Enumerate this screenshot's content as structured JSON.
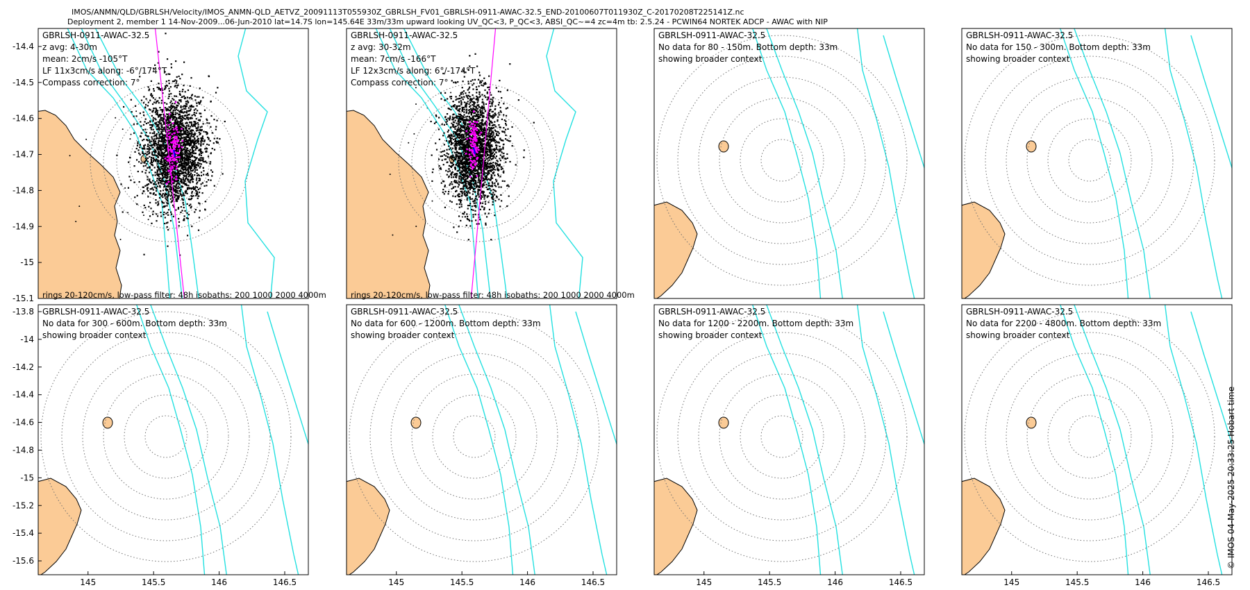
{
  "header": {
    "filename": "IMOS/ANMN/QLD/GBRLSH/Velocity/IMOS_ANMN-QLD_AETVZ_20091113T055930Z_GBRLSH_FV01_GBRLSH-0911-AWAC-32.5_END-20100607T011930Z_C-20170208T225141Z.nc",
    "deployment": "Deployment 2, member 1 14-Nov-2009...06-Jun-2010 lat=14.7S lon=145.64E 33m/33m upward looking UV_QC<3, P_QC<3, ABSI_QC~=4 zc=4m tb: 2.5.24 - PCWIN64 NORTEK ADCP - AWAC with NIP"
  },
  "credit": "© IMOS 04-May-2025 20:33:25 Hobart time",
  "colors": {
    "land": "#fbcb96",
    "isobath": "#22e0e0",
    "rings": "#707070",
    "scatter": "#000000",
    "lowpass": "#ff00ff",
    "axis": "#000000",
    "mean_arrow": "#0000ff"
  },
  "chart_data": [
    {
      "type": "scatter",
      "title": "GBRLSH-0911-AWAC-32.5",
      "annotations": [
        "z avg: 4-30m",
        "mean: 2cm/s -105°T",
        "LF 11x3cm/s along: -6°/174°T",
        "Compass correction: 7°"
      ],
      "footer": "rings 20-120cm/s, low-pass filter: 48h isobaths: 200 1000 2000 4000m",
      "ylim": [
        -15.1,
        -14.35
      ],
      "yticks": [
        -14.4,
        -14.5,
        -14.6,
        -14.7,
        -14.8,
        -14.9,
        -15,
        -15.1
      ],
      "ytick_labels": [
        "-14.4",
        "-14.5",
        "-14.6",
        "-14.7",
        "-14.8",
        "-14.9",
        "-15",
        "-15.1"
      ],
      "ring_speeds_cms": [
        20,
        40,
        60,
        80,
        100,
        120
      ],
      "scatter_center": [
        145.64,
        -14.7
      ],
      "mean_speed_cms": 2,
      "mean_direction_degT": -105,
      "lf_major_cms": 11,
      "lf_minor_cms": 3,
      "lf_axis_degT": -6
    },
    {
      "type": "scatter",
      "title": "GBRLSH-0911-AWAC-32.5",
      "annotations": [
        "z avg: 30-32m",
        "mean: 7cm/s -166°T",
        "LF 12x3cm/s along: 6°/-174°T",
        "Compass correction: 7°"
      ],
      "footer": "rings 20-120cm/s, low-pass filter: 48h isobaths: 200 1000 2000 4000m",
      "ring_speeds_cms": [
        20,
        40,
        60,
        80,
        100,
        120
      ],
      "scatter_center": [
        145.64,
        -14.7
      ],
      "mean_speed_cms": 7,
      "mean_direction_degT": -166,
      "lf_major_cms": 12,
      "lf_minor_cms": 3,
      "lf_axis_degT": 6
    },
    {
      "type": "map",
      "title": "GBRLSH-0911-AWAC-32.5",
      "annotations": [
        "No data for 80 - 150m. Bottom depth: 33m",
        "showing broader context"
      ]
    },
    {
      "type": "map",
      "title": "GBRLSH-0911-AWAC-32.5",
      "annotations": [
        "No data for 150 - 300m. Bottom depth: 33m",
        "showing broader context"
      ]
    },
    {
      "type": "map",
      "title": "GBRLSH-0911-AWAC-32.5",
      "annotations": [
        "No data for 300 - 600m. Bottom depth: 33m",
        "showing broader context"
      ],
      "ylim": [
        -15.7,
        -13.75
      ],
      "xlim": [
        144.62,
        146.68
      ],
      "yticks": [
        -13.8,
        -14,
        -14.2,
        -14.4,
        -14.6,
        -14.8,
        -15,
        -15.2,
        -15.4,
        -15.6
      ],
      "ytick_labels": [
        "-13.8",
        "-14",
        "-14.2",
        "-14.4",
        "-14.6",
        "-14.8",
        "-15",
        "-15.2",
        "-15.4",
        "-15.6"
      ],
      "xticks": [
        145,
        145.5,
        146,
        146.5
      ],
      "xtick_labels": [
        "145",
        "145.5",
        "146",
        "146.5"
      ]
    },
    {
      "type": "map",
      "title": "GBRLSH-0911-AWAC-32.5",
      "annotations": [
        "No data for 600 - 1200m. Bottom depth: 33m",
        "showing broader context"
      ],
      "xticks": [
        145,
        145.5,
        146,
        146.5
      ],
      "xtick_labels": [
        "145",
        "145.5",
        "146",
        "146.5"
      ]
    },
    {
      "type": "map",
      "title": "GBRLSH-0911-AWAC-32.5",
      "annotations": [
        "No data for 1200 - 2200m. Bottom depth: 33m",
        "showing broader context"
      ],
      "xticks": [
        145,
        145.5,
        146,
        146.5
      ],
      "xtick_labels": [
        "145",
        "145.5",
        "146",
        "146.5"
      ]
    },
    {
      "type": "map",
      "title": "GBRLSH-0911-AWAC-32.5",
      "annotations": [
        "No data for 2200 - 4800m. Bottom depth: 33m",
        "showing broader context"
      ],
      "xticks": [
        145,
        145.5,
        146,
        146.5
      ],
      "xtick_labels": [
        "145",
        "145.5",
        "146",
        "146.5"
      ]
    }
  ]
}
